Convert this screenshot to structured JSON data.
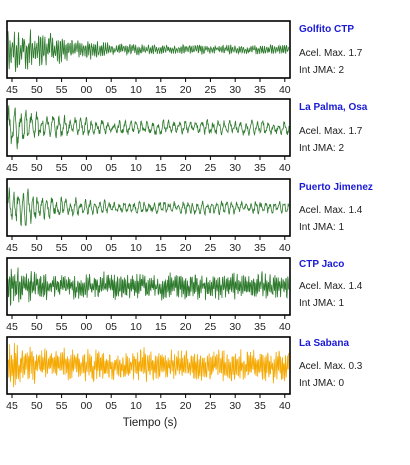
{
  "chart_data": [
    {
      "type": "line",
      "station": "Golfito CTP",
      "peak_label": "Acel. Max. 1.7",
      "intensity_label": "Int JMA: 2",
      "color": "#2d7a2d",
      "x_tick_labels": [
        "45",
        "50",
        "55",
        "00",
        "05",
        "10",
        "15",
        "20",
        "25",
        "30",
        "35",
        "40"
      ],
      "signal": {
        "onset": 0.0,
        "amp": 0.95,
        "decay": 0.22,
        "period": 5
      }
    },
    {
      "type": "line",
      "station": "La Palma, Osa",
      "peak_label": "Acel. Max. 1.7",
      "intensity_label": "Int JMA: 2",
      "color": "#2d7a2d",
      "x_tick_labels": [
        "45",
        "50",
        "55",
        "00",
        "05",
        "10",
        "15",
        "20",
        "25",
        "30",
        "35",
        "40"
      ],
      "signal": {
        "onset": 0.0,
        "amp": 0.9,
        "decay": 0.35,
        "period": 14
      }
    },
    {
      "type": "line",
      "station": "Puerto Jimenez",
      "peak_label": "Acel. Max. 1.4",
      "intensity_label": "Int JMA: 1",
      "color": "#2d7a2d",
      "x_tick_labels": [
        "45",
        "50",
        "55",
        "00",
        "05",
        "10",
        "15",
        "20",
        "25",
        "30",
        "35",
        "40"
      ],
      "signal": {
        "onset": 0.0,
        "amp": 0.9,
        "decay": 0.3,
        "period": 12
      }
    },
    {
      "type": "line",
      "station": "CTP Jaco",
      "peak_label": "Acel. Max. 1.4",
      "intensity_label": "Int JMA: 1",
      "color": "#2d7a2d",
      "x_tick_labels": [
        "45",
        "50",
        "55",
        "00",
        "05",
        "10",
        "15",
        "20",
        "25",
        "30",
        "35",
        "40"
      ],
      "signal": {
        "onset": 0.0,
        "amp": 0.9,
        "decay": 0.6,
        "period": 4
      }
    },
    {
      "type": "line",
      "station": "La Sabana",
      "peak_label": "Acel. Max. 0.3",
      "intensity_label": "Int JMA: 0",
      "color": "#f5a800",
      "x_tick_labels": [
        "45",
        "50",
        "55",
        "00",
        "05",
        "10",
        "15",
        "20",
        "25",
        "30",
        "35",
        "40"
      ],
      "xlabel": "Tiempo (s)",
      "signal": {
        "onset": 0.0,
        "amp": 0.95,
        "decay": 0.7,
        "period": 4
      }
    }
  ]
}
